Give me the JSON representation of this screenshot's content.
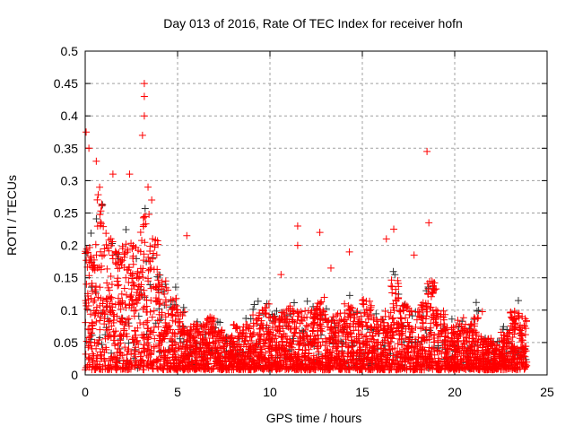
{
  "chart_data": {
    "type": "scatter",
    "title": "Day 013 of 2016, Rate Of TEC Index for receiver hofn",
    "xlabel": "GPS time / hours",
    "ylabel": "ROTI / TECUs",
    "xlim": [
      0,
      25
    ],
    "ylim": [
      0,
      0.5
    ],
    "xticks": [
      "0",
      "5",
      "10",
      "15",
      "20",
      "25"
    ],
    "yticks": [
      "0",
      "0.05",
      "0.1",
      "0.15",
      "0.2",
      "0.25",
      "0.3",
      "0.35",
      "0.4",
      "0.45",
      "0.5"
    ],
    "grid": true,
    "series_color": "#ff0000",
    "secondary_color": "#333333",
    "dense_envelope": {
      "x_hours": [
        0,
        0.5,
        1,
        1.5,
        2,
        2.5,
        3,
        3.5,
        4,
        4.5,
        5,
        5.5,
        6,
        6.5,
        7,
        7.5,
        8,
        8.5,
        9,
        9.5,
        10,
        10.5,
        11,
        11.5,
        12,
        12.5,
        13,
        13.5,
        14,
        14.5,
        15,
        15.5,
        16,
        16.5,
        17,
        17.5,
        18,
        18.5,
        19,
        19.5,
        20,
        20.5,
        21,
        21.5,
        22,
        22.5,
        23,
        23.5
      ],
      "max_roti": [
        0.2,
        0.3,
        0.22,
        0.2,
        0.22,
        0.2,
        0.25,
        0.22,
        0.15,
        0.12,
        0.1,
        0.08,
        0.08,
        0.09,
        0.07,
        0.06,
        0.08,
        0.08,
        0.1,
        0.11,
        0.09,
        0.1,
        0.11,
        0.1,
        0.1,
        0.12,
        0.09,
        0.1,
        0.11,
        0.1,
        0.12,
        0.09,
        0.1,
        0.15,
        0.11,
        0.1,
        0.12,
        0.15,
        0.1,
        0.08,
        0.09,
        0.08,
        0.1,
        0.06,
        0.05,
        0.07,
        0.1,
        0.09
      ]
    },
    "outliers": [
      [
        0.05,
        0.375
      ],
      [
        0.2,
        0.35
      ],
      [
        0.6,
        0.33
      ],
      [
        1.5,
        0.31
      ],
      [
        2.4,
        0.31
      ],
      [
        3.2,
        0.45
      ],
      [
        3.2,
        0.43
      ],
      [
        3.2,
        0.4
      ],
      [
        3.1,
        0.37
      ],
      [
        3.4,
        0.29
      ],
      [
        3.6,
        0.27
      ],
      [
        5.5,
        0.215
      ],
      [
        11.5,
        0.23
      ],
      [
        12.7,
        0.22
      ],
      [
        18.5,
        0.345
      ],
      [
        18.6,
        0.235
      ],
      [
        16.7,
        0.225
      ],
      [
        16.3,
        0.21
      ],
      [
        17.8,
        0.185
      ],
      [
        11.5,
        0.2
      ],
      [
        13.3,
        0.165
      ],
      [
        14.3,
        0.19
      ],
      [
        10.6,
        0.155
      ]
    ]
  }
}
